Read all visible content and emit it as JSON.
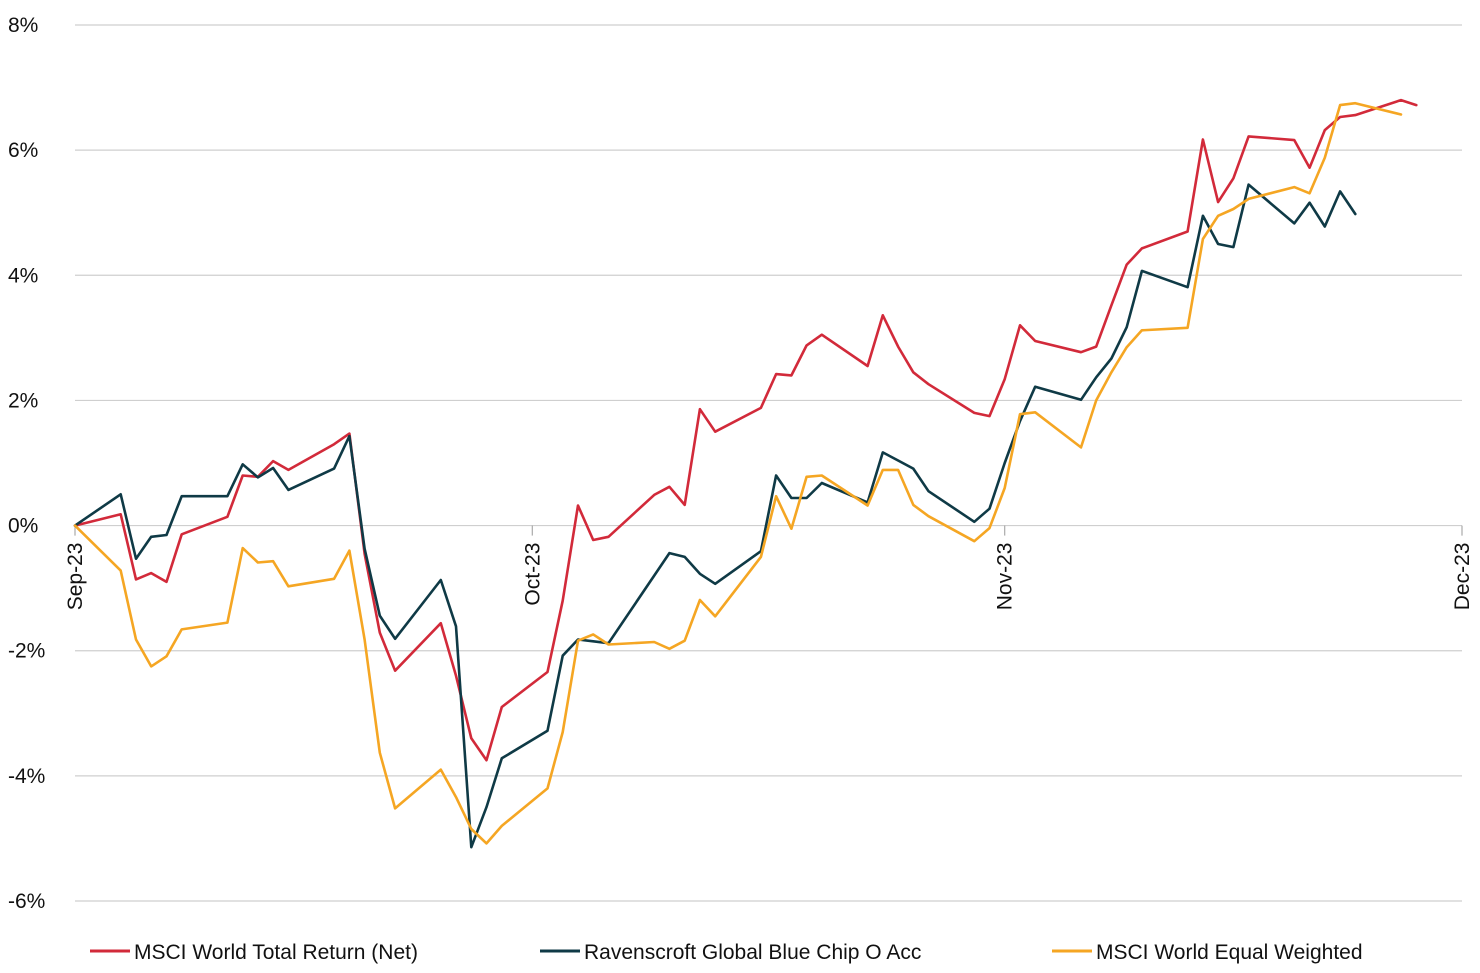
{
  "chart_data": {
    "type": "line",
    "title": "",
    "xlabel": "",
    "ylabel": "",
    "x_ticks": [
      "Sep-23",
      "Oct-23",
      "Nov-23",
      "Dec-23"
    ],
    "y_ticks": [
      "8%",
      "6%",
      "4%",
      "2%",
      "0%",
      "-2%",
      "-4%",
      "-6%"
    ],
    "ylim": [
      -6,
      8
    ],
    "xlim": [
      "2023-09-01",
      "2023-12-01"
    ],
    "grid": true,
    "legend_position": "bottom",
    "series": [
      {
        "name": "MSCI World Total Return (Net)",
        "color": "#d22a3a",
        "points": [
          [
            "2023-09-01",
            0.0
          ],
          [
            "2023-09-04",
            0.18
          ],
          [
            "2023-09-05",
            -0.86
          ],
          [
            "2023-09-06",
            -0.76
          ],
          [
            "2023-09-07",
            -0.9
          ],
          [
            "2023-09-08",
            -0.14
          ],
          [
            "2023-09-11",
            0.14
          ],
          [
            "2023-09-12",
            0.8
          ],
          [
            "2023-09-13",
            0.78
          ],
          [
            "2023-09-14",
            1.03
          ],
          [
            "2023-09-15",
            0.89
          ],
          [
            "2023-09-18",
            1.3
          ],
          [
            "2023-09-19",
            1.47
          ],
          [
            "2023-09-20",
            -0.45
          ],
          [
            "2023-09-21",
            -1.71
          ],
          [
            "2023-09-22",
            -2.32
          ],
          [
            "2023-09-25",
            -1.56
          ],
          [
            "2023-09-26",
            -2.4
          ],
          [
            "2023-09-27",
            -3.4
          ],
          [
            "2023-09-28",
            -3.75
          ],
          [
            "2023-09-29",
            -2.9
          ],
          [
            "2023-10-02",
            -2.34
          ],
          [
            "2023-10-03",
            -1.2
          ],
          [
            "2023-10-04",
            0.32
          ],
          [
            "2023-10-05",
            -0.23
          ],
          [
            "2023-10-06",
            -0.18
          ],
          [
            "2023-10-09",
            0.49
          ],
          [
            "2023-10-10",
            0.62
          ],
          [
            "2023-10-11",
            0.33
          ],
          [
            "2023-10-12",
            1.86
          ],
          [
            "2023-10-13",
            1.5
          ],
          [
            "2023-10-16",
            1.88
          ],
          [
            "2023-10-17",
            2.42
          ],
          [
            "2023-10-18",
            2.4
          ],
          [
            "2023-10-19",
            2.88
          ],
          [
            "2023-10-20",
            3.05
          ],
          [
            "2023-10-23",
            2.55
          ],
          [
            "2023-10-24",
            3.36
          ],
          [
            "2023-10-25",
            2.86
          ],
          [
            "2023-10-26",
            2.45
          ],
          [
            "2023-10-27",
            2.26
          ],
          [
            "2023-10-30",
            1.8
          ],
          [
            "2023-10-31",
            1.75
          ],
          [
            "2023-11-01",
            2.34
          ],
          [
            "2023-11-02",
            3.2
          ],
          [
            "2023-11-03",
            2.95
          ],
          [
            "2023-11-06",
            2.77
          ],
          [
            "2023-11-07",
            2.86
          ],
          [
            "2023-11-08",
            3.52
          ],
          [
            "2023-11-09",
            4.17
          ],
          [
            "2023-11-10",
            4.43
          ],
          [
            "2023-11-13",
            4.7
          ],
          [
            "2023-11-14",
            6.17
          ],
          [
            "2023-11-15",
            5.17
          ],
          [
            "2023-11-16",
            5.55
          ],
          [
            "2023-11-17",
            6.22
          ],
          [
            "2023-11-20",
            6.16
          ],
          [
            "2023-11-21",
            5.72
          ],
          [
            "2023-11-22",
            6.32
          ],
          [
            "2023-11-23",
            6.53
          ],
          [
            "2023-11-24",
            6.56
          ],
          [
            "2023-11-27",
            6.8
          ],
          [
            "2023-11-28",
            6.72
          ]
        ]
      },
      {
        "name": "Ravenscroft Global Blue Chip O Acc",
        "color": "#0f3a46",
        "points": [
          [
            "2023-09-01",
            0.0
          ],
          [
            "2023-09-04",
            0.5
          ],
          [
            "2023-09-05",
            -0.53
          ],
          [
            "2023-09-06",
            -0.18
          ],
          [
            "2023-09-07",
            -0.15
          ],
          [
            "2023-09-08",
            0.47
          ],
          [
            "2023-09-11",
            0.47
          ],
          [
            "2023-09-12",
            0.98
          ],
          [
            "2023-09-13",
            0.77
          ],
          [
            "2023-09-14",
            0.92
          ],
          [
            "2023-09-15",
            0.57
          ],
          [
            "2023-09-18",
            0.91
          ],
          [
            "2023-09-19",
            1.43
          ],
          [
            "2023-09-20",
            -0.37
          ],
          [
            "2023-09-21",
            -1.44
          ],
          [
            "2023-09-22",
            -1.81
          ],
          [
            "2023-09-25",
            -0.87
          ],
          [
            "2023-09-26",
            -1.61
          ],
          [
            "2023-09-27",
            -5.14
          ],
          [
            "2023-09-28",
            -4.5
          ],
          [
            "2023-09-29",
            -3.72
          ],
          [
            "2023-10-02",
            -3.28
          ],
          [
            "2023-10-03",
            -2.08
          ],
          [
            "2023-10-04",
            -1.82
          ],
          [
            "2023-10-05",
            -1.85
          ],
          [
            "2023-10-06",
            -1.88
          ],
          [
            "2023-10-09",
            -0.8
          ],
          [
            "2023-10-10",
            -0.44
          ],
          [
            "2023-10-11",
            -0.5
          ],
          [
            "2023-10-12",
            -0.77
          ],
          [
            "2023-10-13",
            -0.93
          ],
          [
            "2023-10-16",
            -0.41
          ],
          [
            "2023-10-17",
            0.8
          ],
          [
            "2023-10-18",
            0.44
          ],
          [
            "2023-10-19",
            0.44
          ],
          [
            "2023-10-20",
            0.68
          ],
          [
            "2023-10-23",
            0.37
          ],
          [
            "2023-10-24",
            1.17
          ],
          [
            "2023-10-25",
            1.04
          ],
          [
            "2023-10-26",
            0.91
          ],
          [
            "2023-10-27",
            0.55
          ],
          [
            "2023-10-30",
            0.06
          ],
          [
            "2023-10-31",
            0.27
          ],
          [
            "2023-11-01",
            1.0
          ],
          [
            "2023-11-02",
            1.67
          ],
          [
            "2023-11-03",
            2.22
          ],
          [
            "2023-11-06",
            2.01
          ],
          [
            "2023-11-07",
            2.37
          ],
          [
            "2023-11-08",
            2.67
          ],
          [
            "2023-11-09",
            3.17
          ],
          [
            "2023-11-10",
            4.07
          ],
          [
            "2023-11-13",
            3.81
          ],
          [
            "2023-11-14",
            4.95
          ],
          [
            "2023-11-15",
            4.5
          ],
          [
            "2023-11-16",
            4.45
          ],
          [
            "2023-11-17",
            5.45
          ],
          [
            "2023-11-20",
            4.83
          ],
          [
            "2023-11-21",
            5.16
          ],
          [
            "2023-11-22",
            4.78
          ],
          [
            "2023-11-23",
            5.34
          ],
          [
            "2023-11-24",
            4.98
          ]
        ]
      },
      {
        "name": "MSCI World Equal Weighted",
        "color": "#f5a623",
        "points": [
          [
            "2023-09-01",
            0.0
          ],
          [
            "2023-09-04",
            -0.72
          ],
          [
            "2023-09-05",
            -1.82
          ],
          [
            "2023-09-06",
            -2.25
          ],
          [
            "2023-09-07",
            -2.09
          ],
          [
            "2023-09-08",
            -1.66
          ],
          [
            "2023-09-11",
            -1.55
          ],
          [
            "2023-09-12",
            -0.36
          ],
          [
            "2023-09-13",
            -0.59
          ],
          [
            "2023-09-14",
            -0.57
          ],
          [
            "2023-09-15",
            -0.97
          ],
          [
            "2023-09-18",
            -0.85
          ],
          [
            "2023-09-19",
            -0.4
          ],
          [
            "2023-09-20",
            -1.82
          ],
          [
            "2023-09-21",
            -3.63
          ],
          [
            "2023-09-22",
            -4.52
          ],
          [
            "2023-09-25",
            -3.9
          ],
          [
            "2023-09-26",
            -4.34
          ],
          [
            "2023-09-27",
            -4.85
          ],
          [
            "2023-09-28",
            -5.08
          ],
          [
            "2023-09-29",
            -4.8
          ],
          [
            "2023-10-02",
            -4.2
          ],
          [
            "2023-10-03",
            -3.3
          ],
          [
            "2023-10-04",
            -1.84
          ],
          [
            "2023-10-05",
            -1.74
          ],
          [
            "2023-10-06",
            -1.9
          ],
          [
            "2023-10-09",
            -1.86
          ],
          [
            "2023-10-10",
            -1.97
          ],
          [
            "2023-10-11",
            -1.84
          ],
          [
            "2023-10-12",
            -1.19
          ],
          [
            "2023-10-13",
            -1.45
          ],
          [
            "2023-10-16",
            -0.5
          ],
          [
            "2023-10-17",
            0.47
          ],
          [
            "2023-10-18",
            -0.05
          ],
          [
            "2023-10-19",
            0.78
          ],
          [
            "2023-10-20",
            0.8
          ],
          [
            "2023-10-23",
            0.32
          ],
          [
            "2023-10-24",
            0.89
          ],
          [
            "2023-10-25",
            0.89
          ],
          [
            "2023-10-26",
            0.33
          ],
          [
            "2023-10-27",
            0.15
          ],
          [
            "2023-10-30",
            -0.25
          ],
          [
            "2023-10-31",
            -0.04
          ],
          [
            "2023-11-01",
            0.6
          ],
          [
            "2023-11-02",
            1.78
          ],
          [
            "2023-11-03",
            1.81
          ],
          [
            "2023-11-06",
            1.25
          ],
          [
            "2023-11-07",
            2.0
          ],
          [
            "2023-11-08",
            2.45
          ],
          [
            "2023-11-09",
            2.85
          ],
          [
            "2023-11-10",
            3.12
          ],
          [
            "2023-11-13",
            3.16
          ],
          [
            "2023-11-14",
            4.58
          ],
          [
            "2023-11-15",
            4.95
          ],
          [
            "2023-11-16",
            5.06
          ],
          [
            "2023-11-17",
            5.22
          ],
          [
            "2023-11-20",
            5.41
          ],
          [
            "2023-11-21",
            5.31
          ],
          [
            "2023-11-22",
            5.88
          ],
          [
            "2023-11-23",
            6.72
          ],
          [
            "2023-11-24",
            6.75
          ],
          [
            "2023-11-27",
            6.57
          ]
        ]
      }
    ]
  }
}
